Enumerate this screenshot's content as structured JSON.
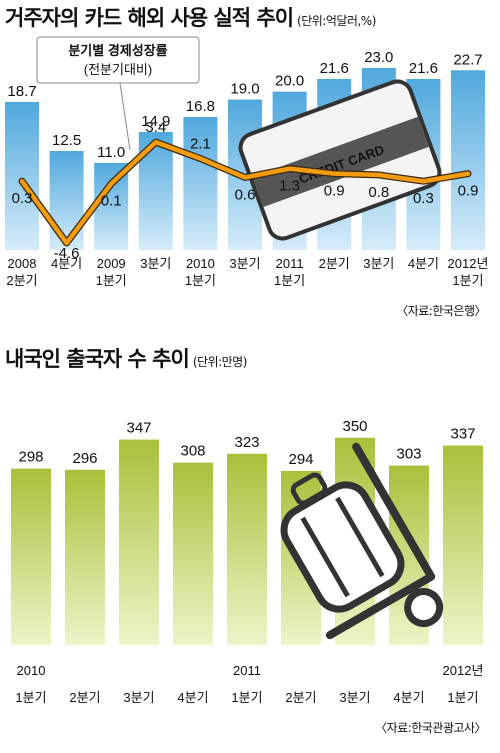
{
  "chart_data": [
    {
      "type": "bar",
      "title": "거주자의 카드 해외 사용 실적 추이",
      "unit": "(단위:억달러,%)",
      "categories": [
        "2008 2분기",
        "4분기",
        "2009 1분기",
        "3분기",
        "2010 1분기",
        "3분기",
        "2011 1분기",
        "2분기",
        "3분기",
        "4분기",
        "2012년 1분기"
      ],
      "tick_top": [
        "2008",
        "4분기",
        "2009",
        "3분기",
        "2010",
        "3분기",
        "2011",
        "2분기",
        "3분기",
        "4분기",
        "2012년"
      ],
      "tick_bottom": [
        "2분기",
        "",
        "1분기",
        "",
        "1분기",
        "",
        "1분기",
        "",
        "",
        "",
        "1분기"
      ],
      "values": [
        18.7,
        12.5,
        11.0,
        14.9,
        16.8,
        19.0,
        20.0,
        21.6,
        23.0,
        21.6,
        22.7
      ],
      "value_labels": [
        "18.7",
        "12.5",
        "11.0",
        "14.9",
        "16.8",
        "19.0",
        "20.0",
        "21.6",
        "23.0",
        "21.6",
        "22.7"
      ],
      "ylim": [
        0,
        24
      ],
      "line_series": {
        "name": "분기별 경제성장률",
        "subtitle": "(전분기대비)",
        "values": [
          0.3,
          -4.6,
          0.1,
          3.4,
          2.1,
          0.6,
          1.3,
          0.9,
          0.8,
          0.3,
          0.9
        ],
        "value_labels": [
          "0.3",
          "-4.6",
          "0.1",
          "3.4",
          "2.1",
          "0.6",
          "1.3",
          "0.9",
          "0.8",
          "0.3",
          "0.9"
        ]
      },
      "illustration": {
        "icon": "credit-card-icon",
        "text": "CREDIT CARD"
      },
      "source": "〈자료:한국은행〉",
      "colors": {
        "bar_top": "#4fa8dd",
        "bar_bottom": "#d6ecf9",
        "line": "#f39c12",
        "line_outline": "#3a2a10"
      }
    },
    {
      "type": "bar",
      "title": "내국인 출국자 수 추이",
      "unit": "(단위:만명)",
      "categories": [
        "2010 1분기",
        "2분기",
        "3분기",
        "4분기",
        "2011 1분기",
        "2분기",
        "3분기",
        "4분기",
        "2012년 1분기"
      ],
      "tick_top": [
        "2010",
        "",
        "",
        "",
        "2011",
        "",
        "",
        "",
        "2012년"
      ],
      "tick_bottom": [
        "1분기",
        "2분기",
        "3분기",
        "4분기",
        "1분기",
        "2분기",
        "3분기",
        "4분기",
        "1분기"
      ],
      "values": [
        298,
        296,
        347,
        308,
        323,
        294,
        350,
        303,
        337
      ],
      "value_labels": [
        "298",
        "296",
        "347",
        "308",
        "323",
        "294",
        "350",
        "303",
        "337"
      ],
      "illustration": {
        "icon": "luggage-cart-icon"
      },
      "source": "〈자료:한국관광고사〉",
      "colors": {
        "bar_top": "#a9c03a",
        "bar_bottom": "#eef4c8"
      }
    }
  ]
}
